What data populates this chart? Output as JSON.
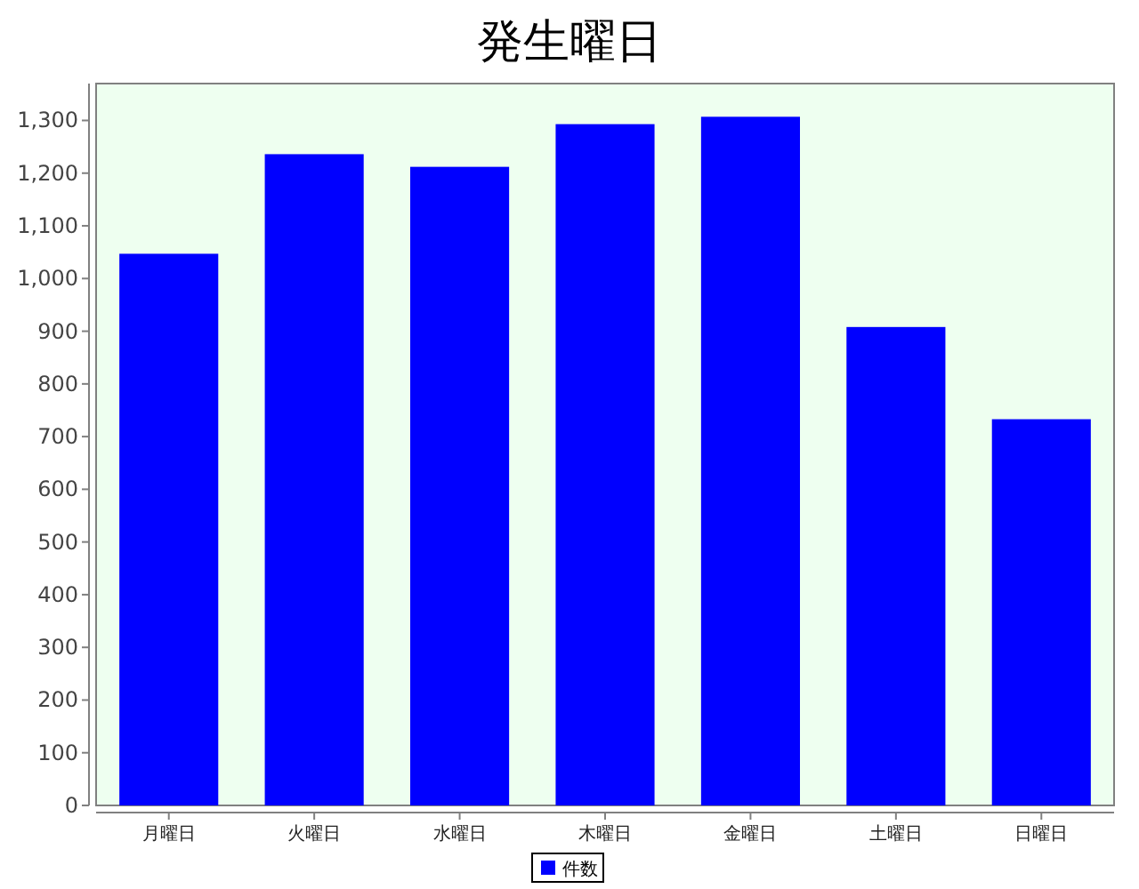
{
  "chart_data": {
    "type": "bar",
    "title": "発生曜日",
    "categories": [
      "月曜日",
      "火曜日",
      "水曜日",
      "木曜日",
      "金曜日",
      "土曜日",
      "日曜日"
    ],
    "series": [
      {
        "name": "件数",
        "color": "#0000ff",
        "values": [
          1047,
          1236,
          1212,
          1293,
          1307,
          908,
          733
        ]
      }
    ],
    "ylim": [
      0,
      1370
    ],
    "yticks": [
      0,
      100,
      200,
      300,
      400,
      500,
      600,
      700,
      800,
      900,
      {
        "value": 1000,
        "label": "1,000"
      },
      {
        "value": 1100,
        "label": "1,100"
      },
      {
        "value": 1200,
        "label": "1,200"
      },
      {
        "value": 1300,
        "label": "1,300"
      }
    ],
    "grid": false,
    "legend": "bottom"
  }
}
